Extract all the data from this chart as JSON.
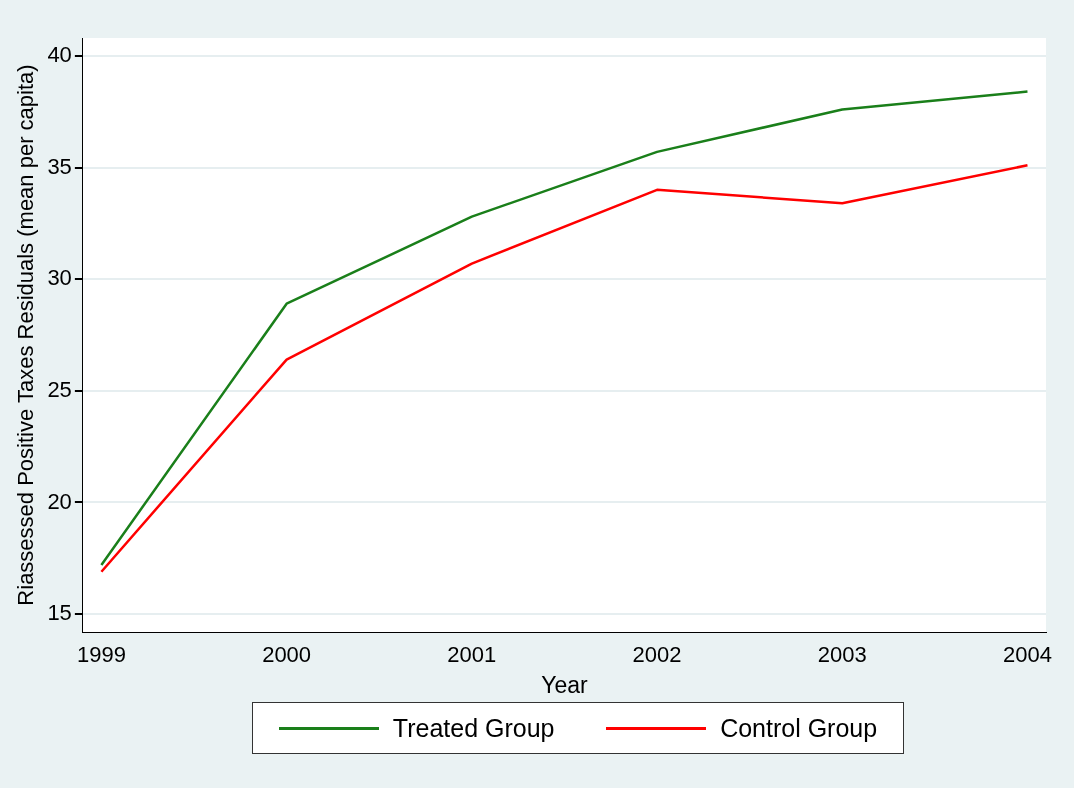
{
  "chart_data": {
    "type": "line",
    "xlabel": "Year",
    "ylabel": "Riassessed Positive Taxes Residuals (mean per capita)",
    "x": [
      1999,
      2000,
      2001,
      2002,
      2003,
      2004
    ],
    "series": [
      {
        "name": "Treated Group",
        "color": "#1a7f1a",
        "values": [
          17.2,
          28.9,
          32.8,
          35.7,
          37.6,
          38.4
        ]
      },
      {
        "name": "Control Group",
        "color": "#ff0000",
        "values": [
          16.9,
          26.4,
          30.7,
          34.0,
          33.4,
          35.1
        ]
      }
    ],
    "xlim": [
      1998.9,
      2004.1
    ],
    "xticks": [
      1999,
      2000,
      2001,
      2002,
      2003,
      2004
    ],
    "ylim": [
      14.2,
      40.8
    ],
    "yticks": [
      15,
      20,
      25,
      30,
      35,
      40
    ],
    "grid": "y",
    "legend": "bottom",
    "marker": "none",
    "line_style": "solid"
  }
}
